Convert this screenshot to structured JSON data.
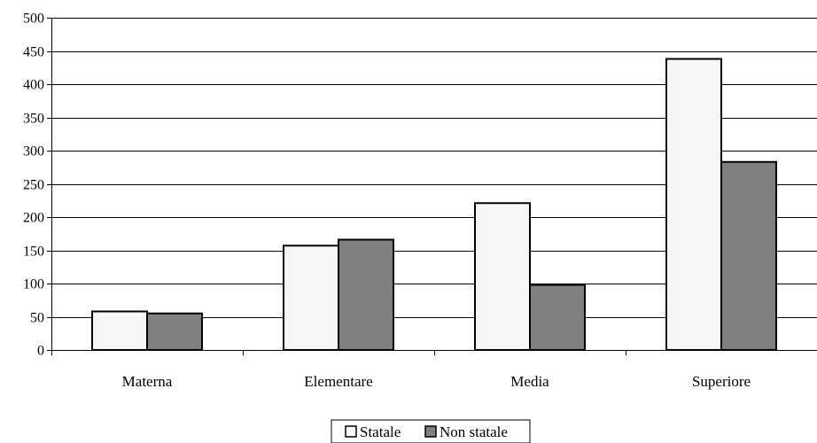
{
  "chart_data": {
    "type": "bar",
    "categories": [
      "Materna",
      "Elementare",
      "Media",
      "Superiore"
    ],
    "series": [
      {
        "name": "Statale",
        "values": [
          58,
          157,
          221,
          438
        ],
        "color": "#f7f7f7"
      },
      {
        "name": "Non statale",
        "values": [
          55,
          166,
          98,
          283
        ],
        "color": "#808080"
      }
    ],
    "y_ticks": [
      "0",
      "50",
      "100",
      "150",
      "200",
      "250",
      "300",
      "350",
      "400",
      "450",
      "500"
    ],
    "ylim": [
      0,
      500
    ],
    "grid": true,
    "legend_position": "bottom-center",
    "title": "",
    "xlabel": "",
    "ylabel": ""
  }
}
